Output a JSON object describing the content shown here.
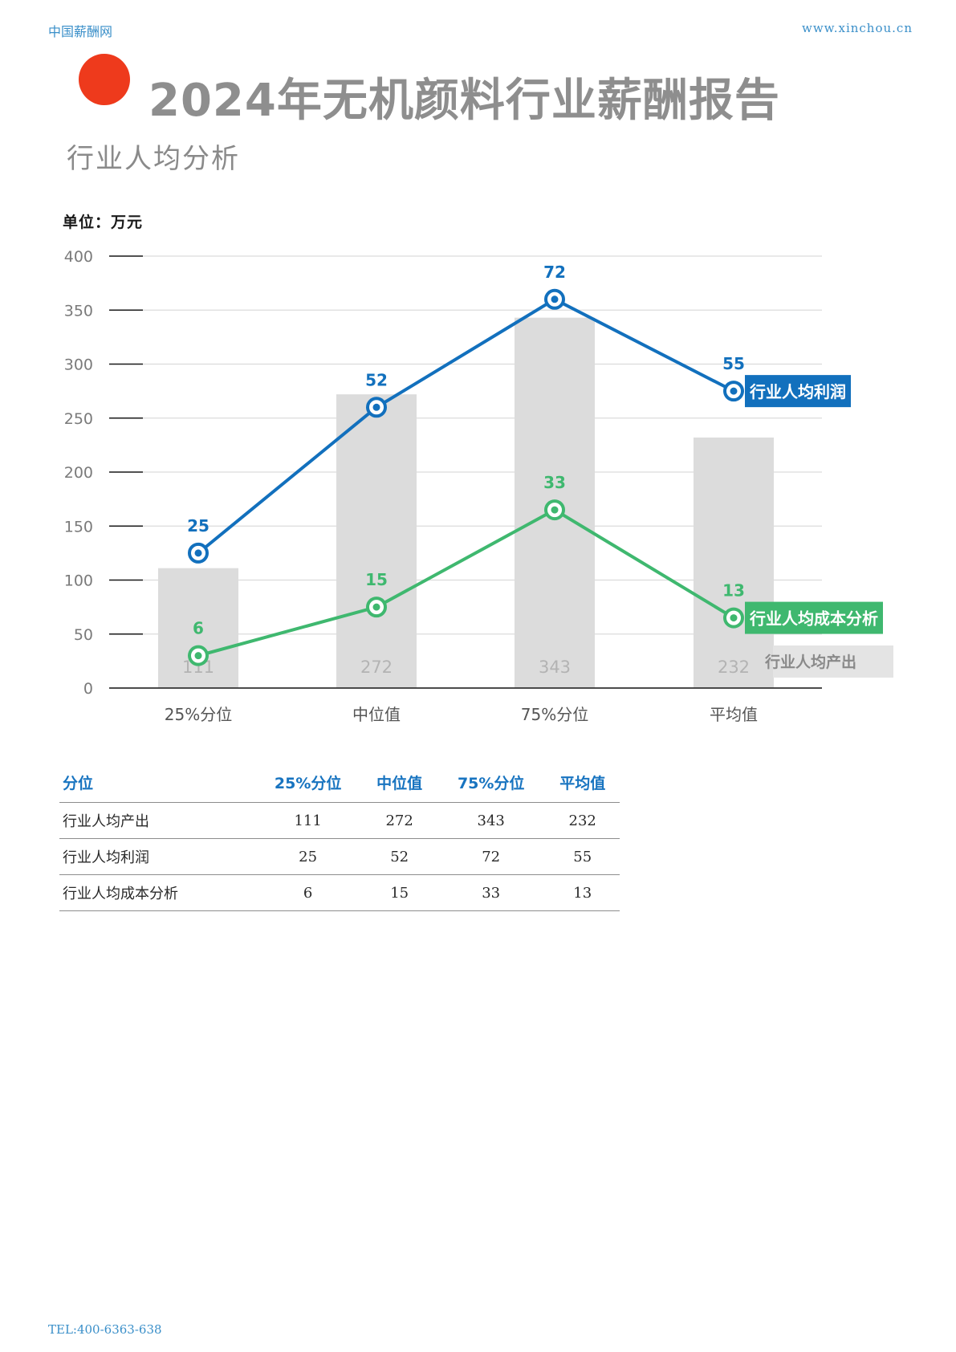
{
  "header": {
    "brand": "中国薪酬网",
    "site": "www.xinchou.cn"
  },
  "page": {
    "title": "2024年无机颜料行业薪酬报告",
    "subtitle": "行业人均分析"
  },
  "chart_data": {
    "type": "bar+line",
    "unit_label": "单位：万元",
    "categories": [
      "25%分位",
      "中位值",
      "75%分位",
      "平均值"
    ],
    "y_axis": {
      "min": 0,
      "max": 400,
      "ticks": [
        0,
        50,
        100,
        150,
        200,
        250,
        300,
        350,
        400
      ]
    },
    "grid": true,
    "bars": {
      "name": "行业人均产出",
      "values": [
        111,
        272,
        343,
        232
      ],
      "color": "#dcdcdc",
      "label_color": "#b3b3b3"
    },
    "lines": [
      {
        "name": "行业人均利润",
        "labels": [
          25,
          52,
          72,
          55
        ],
        "plot_values": [
          125,
          260,
          360,
          275
        ],
        "color": "#1270bd"
      },
      {
        "name": "行业人均成本分析",
        "labels": [
          6,
          15,
          33,
          13
        ],
        "plot_values": [
          30,
          75,
          165,
          65
        ],
        "color": "#3fb86f"
      }
    ]
  },
  "table": {
    "headers": [
      "分位",
      "25%分位",
      "中位值",
      "75%分位",
      "平均值"
    ],
    "rows": [
      [
        "行业人均产出",
        "111",
        "272",
        "343",
        "232"
      ],
      [
        "行业人均利润",
        "25",
        "52",
        "72",
        "55"
      ],
      [
        "行业人均成本分析",
        "6",
        "15",
        "33",
        "13"
      ]
    ]
  },
  "footer": {
    "tel": "TEL:400-6363-638"
  }
}
